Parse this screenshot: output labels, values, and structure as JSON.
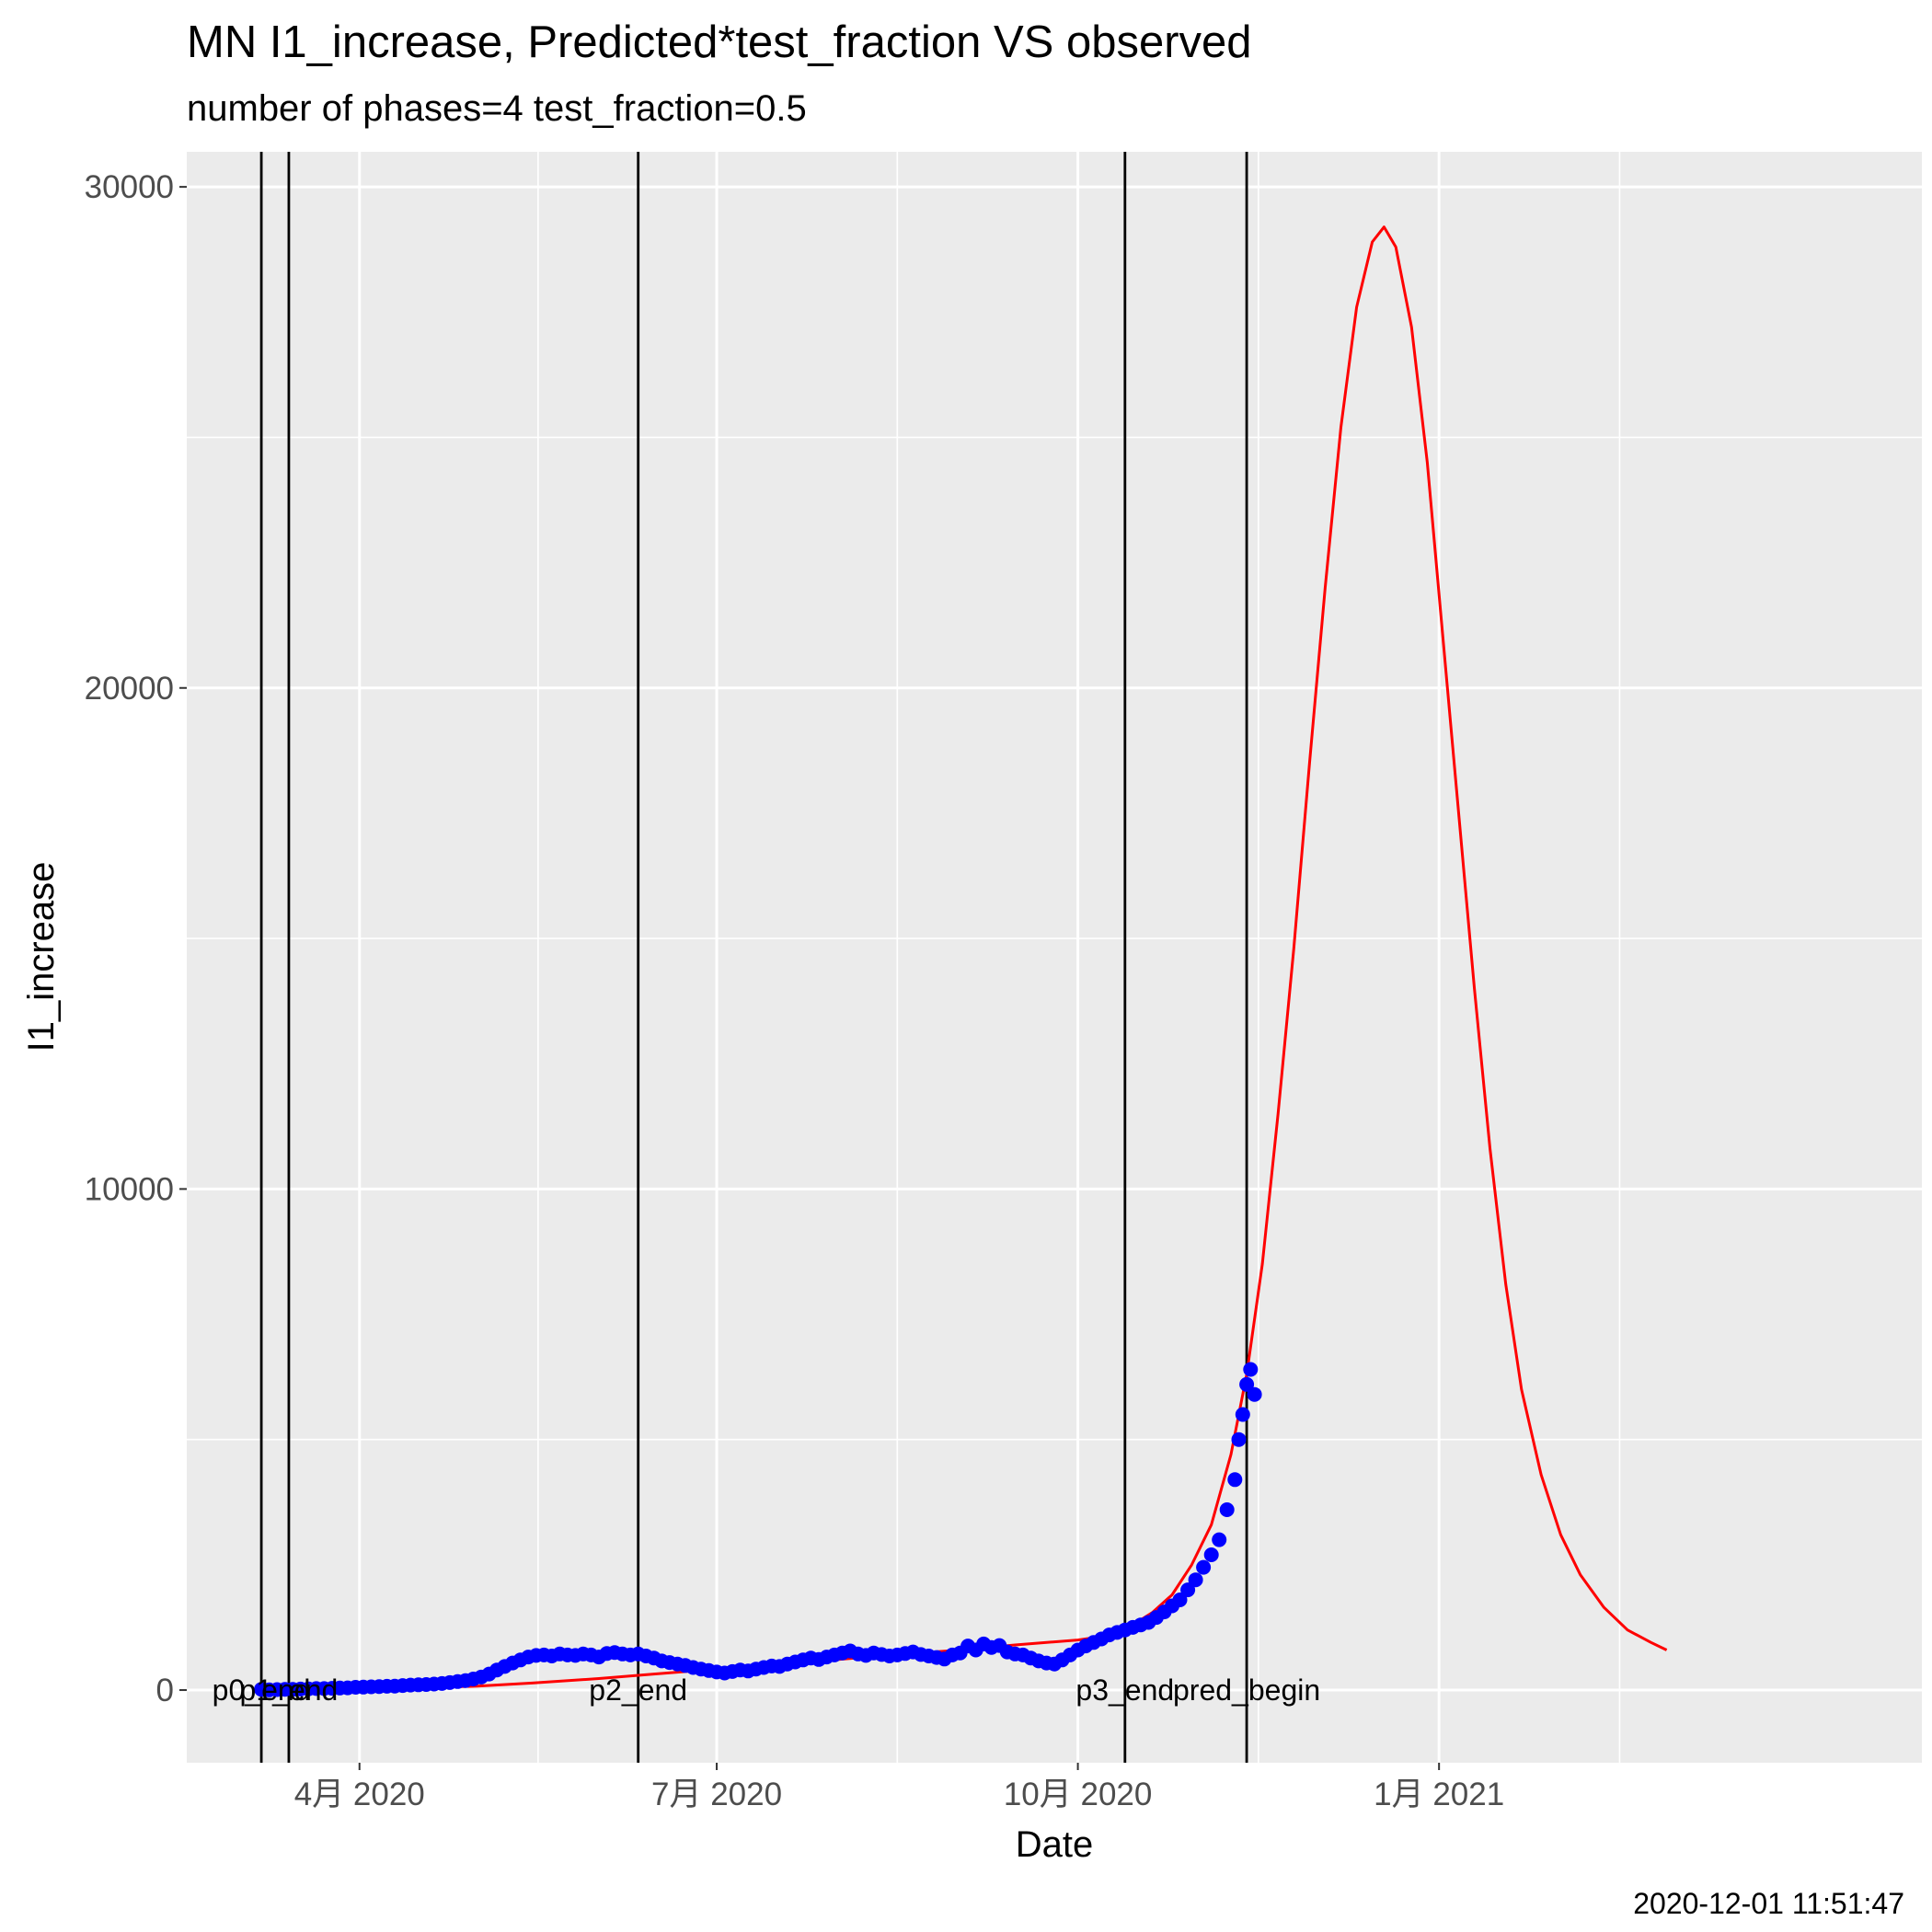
{
  "chart_data": {
    "type": "line",
    "title": "MN I1_increase, Predicted*test_fraction VS observed",
    "subtitle": "number of phases=4   test_fraction=0.5",
    "xlabel": "Date",
    "ylabel": "I1_increase",
    "caption": "2020-12-01 11:51:47",
    "xlim": [
      "2020-02-17",
      "2021-05-04"
    ],
    "ylim": [
      -1450,
      30700
    ],
    "x_ticks": [
      {
        "date": "2020-04-01",
        "label": "4月 2020"
      },
      {
        "date": "2020-07-01",
        "label": "7月 2020"
      },
      {
        "date": "2020-10-01",
        "label": "10月 2020"
      },
      {
        "date": "2021-01-01",
        "label": "1月 2021"
      }
    ],
    "y_ticks": [
      0,
      10000,
      20000,
      30000
    ],
    "grid": true,
    "legend": "none",
    "colors": {
      "panel": "#ebebeb",
      "grid": "#ffffff",
      "predicted": "#ff0000",
      "observed": "#0000ff",
      "phase_line": "#000000"
    },
    "phases": [
      {
        "date": "2020-03-07",
        "label": "p0_end"
      },
      {
        "date": "2020-03-14",
        "label": "p1_end"
      },
      {
        "date": "2020-06-11",
        "label": "p2_end"
      },
      {
        "date": "2020-10-13",
        "label": "p3_end"
      },
      {
        "date": "2020-11-13",
        "label": "pred_begin"
      }
    ],
    "series": [
      {
        "kind": "line",
        "points": [
          [
            "2020-03-07",
            0
          ],
          [
            "2020-03-21",
            5
          ],
          [
            "2020-04-04",
            20
          ],
          [
            "2020-04-18",
            45
          ],
          [
            "2020-05-01",
            80
          ],
          [
            "2020-05-15",
            140
          ],
          [
            "2020-06-01",
            230
          ],
          [
            "2020-06-15",
            320
          ],
          [
            "2020-07-01",
            420
          ],
          [
            "2020-07-15",
            510
          ],
          [
            "2020-08-01",
            610
          ],
          [
            "2020-08-15",
            700
          ],
          [
            "2020-09-01",
            800
          ],
          [
            "2020-09-15",
            900
          ],
          [
            "2020-10-01",
            1000
          ],
          [
            "2020-10-10",
            1100
          ],
          [
            "2020-10-15",
            1300
          ],
          [
            "2020-10-20",
            1550
          ],
          [
            "2020-10-25",
            1900
          ],
          [
            "2020-10-30",
            2500
          ],
          [
            "2020-11-04",
            3300
          ],
          [
            "2020-11-09",
            4700
          ],
          [
            "2020-11-13",
            6300
          ],
          [
            "2020-11-17",
            8500
          ],
          [
            "2020-11-21",
            11500
          ],
          [
            "2020-11-25",
            14800
          ],
          [
            "2020-11-29",
            18500
          ],
          [
            "2020-12-03",
            22000
          ],
          [
            "2020-12-07",
            25200
          ],
          [
            "2020-12-11",
            27600
          ],
          [
            "2020-12-15",
            28900
          ],
          [
            "2020-12-18",
            29200
          ],
          [
            "2020-12-21",
            28800
          ],
          [
            "2020-12-25",
            27200
          ],
          [
            "2020-12-29",
            24500
          ],
          [
            "2021-01-02",
            21000
          ],
          [
            "2021-01-06",
            17500
          ],
          [
            "2021-01-10",
            14000
          ],
          [
            "2021-01-14",
            10800
          ],
          [
            "2021-01-18",
            8100
          ],
          [
            "2021-01-22",
            6000
          ],
          [
            "2021-01-27",
            4300
          ],
          [
            "2021-02-01",
            3100
          ],
          [
            "2021-02-06",
            2300
          ],
          [
            "2021-02-12",
            1650
          ],
          [
            "2021-02-18",
            1200
          ],
          [
            "2021-02-24",
            950
          ],
          [
            "2021-02-28",
            800
          ]
        ]
      },
      {
        "kind": "scatter",
        "points": [
          [
            "2020-03-07",
            15
          ],
          [
            "2020-03-09",
            5
          ],
          [
            "2020-03-11",
            10
          ],
          [
            "2020-03-13",
            15
          ],
          [
            "2020-03-15",
            15
          ],
          [
            "2020-03-17",
            20
          ],
          [
            "2020-03-19",
            25
          ],
          [
            "2020-03-21",
            30
          ],
          [
            "2020-03-23",
            30
          ],
          [
            "2020-03-25",
            35
          ],
          [
            "2020-03-27",
            40
          ],
          [
            "2020-03-29",
            45
          ],
          [
            "2020-03-31",
            55
          ],
          [
            "2020-04-02",
            60
          ],
          [
            "2020-04-04",
            65
          ],
          [
            "2020-04-06",
            70
          ],
          [
            "2020-04-08",
            75
          ],
          [
            "2020-04-10",
            80
          ],
          [
            "2020-04-12",
            90
          ],
          [
            "2020-04-14",
            100
          ],
          [
            "2020-04-16",
            105
          ],
          [
            "2020-04-18",
            110
          ],
          [
            "2020-04-20",
            120
          ],
          [
            "2020-04-22",
            130
          ],
          [
            "2020-04-24",
            150
          ],
          [
            "2020-04-26",
            170
          ],
          [
            "2020-04-28",
            190
          ],
          [
            "2020-04-30",
            220
          ],
          [
            "2020-05-02",
            260
          ],
          [
            "2020-05-04",
            320
          ],
          [
            "2020-05-06",
            400
          ],
          [
            "2020-05-08",
            470
          ],
          [
            "2020-05-10",
            540
          ],
          [
            "2020-05-12",
            600
          ],
          [
            "2020-05-14",
            660
          ],
          [
            "2020-05-16",
            690
          ],
          [
            "2020-05-18",
            700
          ],
          [
            "2020-05-20",
            680
          ],
          [
            "2020-05-22",
            720
          ],
          [
            "2020-05-24",
            700
          ],
          [
            "2020-05-26",
            690
          ],
          [
            "2020-05-28",
            720
          ],
          [
            "2020-05-30",
            700
          ],
          [
            "2020-06-01",
            660
          ],
          [
            "2020-06-03",
            730
          ],
          [
            "2020-06-05",
            750
          ],
          [
            "2020-06-07",
            720
          ],
          [
            "2020-06-09",
            700
          ],
          [
            "2020-06-11",
            720
          ],
          [
            "2020-06-13",
            680
          ],
          [
            "2020-06-15",
            640
          ],
          [
            "2020-06-17",
            580
          ],
          [
            "2020-06-19",
            550
          ],
          [
            "2020-06-21",
            520
          ],
          [
            "2020-06-23",
            490
          ],
          [
            "2020-06-25",
            450
          ],
          [
            "2020-06-27",
            420
          ],
          [
            "2020-06-29",
            390
          ],
          [
            "2020-07-01",
            360
          ],
          [
            "2020-07-03",
            340
          ],
          [
            "2020-07-05",
            370
          ],
          [
            "2020-07-07",
            400
          ],
          [
            "2020-07-09",
            380
          ],
          [
            "2020-07-11",
            420
          ],
          [
            "2020-07-13",
            450
          ],
          [
            "2020-07-15",
            480
          ],
          [
            "2020-07-17",
            470
          ],
          [
            "2020-07-19",
            520
          ],
          [
            "2020-07-21",
            560
          ],
          [
            "2020-07-23",
            600
          ],
          [
            "2020-07-25",
            640
          ],
          [
            "2020-07-27",
            610
          ],
          [
            "2020-07-29",
            660
          ],
          [
            "2020-07-31",
            700
          ],
          [
            "2020-08-02",
            740
          ],
          [
            "2020-08-04",
            780
          ],
          [
            "2020-08-06",
            720
          ],
          [
            "2020-08-08",
            690
          ],
          [
            "2020-08-10",
            740
          ],
          [
            "2020-08-12",
            710
          ],
          [
            "2020-08-14",
            680
          ],
          [
            "2020-08-16",
            700
          ],
          [
            "2020-08-18",
            730
          ],
          [
            "2020-08-20",
            760
          ],
          [
            "2020-08-22",
            710
          ],
          [
            "2020-08-24",
            680
          ],
          [
            "2020-08-26",
            650
          ],
          [
            "2020-08-28",
            620
          ],
          [
            "2020-08-30",
            700
          ],
          [
            "2020-09-01",
            740
          ],
          [
            "2020-09-03",
            880
          ],
          [
            "2020-09-05",
            800
          ],
          [
            "2020-09-07",
            920
          ],
          [
            "2020-09-09",
            850
          ],
          [
            "2020-09-11",
            890
          ],
          [
            "2020-09-13",
            760
          ],
          [
            "2020-09-15",
            720
          ],
          [
            "2020-09-17",
            700
          ],
          [
            "2020-09-19",
            640
          ],
          [
            "2020-09-21",
            580
          ],
          [
            "2020-09-23",
            540
          ],
          [
            "2020-09-25",
            520
          ],
          [
            "2020-09-27",
            600
          ],
          [
            "2020-09-29",
            700
          ],
          [
            "2020-10-01",
            800
          ],
          [
            "2020-10-03",
            880
          ],
          [
            "2020-10-05",
            950
          ],
          [
            "2020-10-07",
            1020
          ],
          [
            "2020-10-09",
            1100
          ],
          [
            "2020-10-11",
            1150
          ],
          [
            "2020-10-13",
            1200
          ],
          [
            "2020-10-15",
            1250
          ],
          [
            "2020-10-17",
            1300
          ],
          [
            "2020-10-19",
            1350
          ],
          [
            "2020-10-21",
            1450
          ],
          [
            "2020-10-23",
            1560
          ],
          [
            "2020-10-25",
            1680
          ],
          [
            "2020-10-27",
            1800
          ],
          [
            "2020-10-29",
            2000
          ],
          [
            "2020-10-31",
            2200
          ],
          [
            "2020-11-02",
            2450
          ],
          [
            "2020-11-04",
            2700
          ],
          [
            "2020-11-06",
            3000
          ],
          [
            "2020-11-08",
            3600
          ],
          [
            "2020-11-10",
            4200
          ],
          [
            "2020-11-11",
            5000
          ],
          [
            "2020-11-12",
            5500
          ],
          [
            "2020-11-13",
            6100
          ],
          [
            "2020-11-14",
            6400
          ],
          [
            "2020-11-15",
            5900
          ]
        ]
      }
    ]
  }
}
